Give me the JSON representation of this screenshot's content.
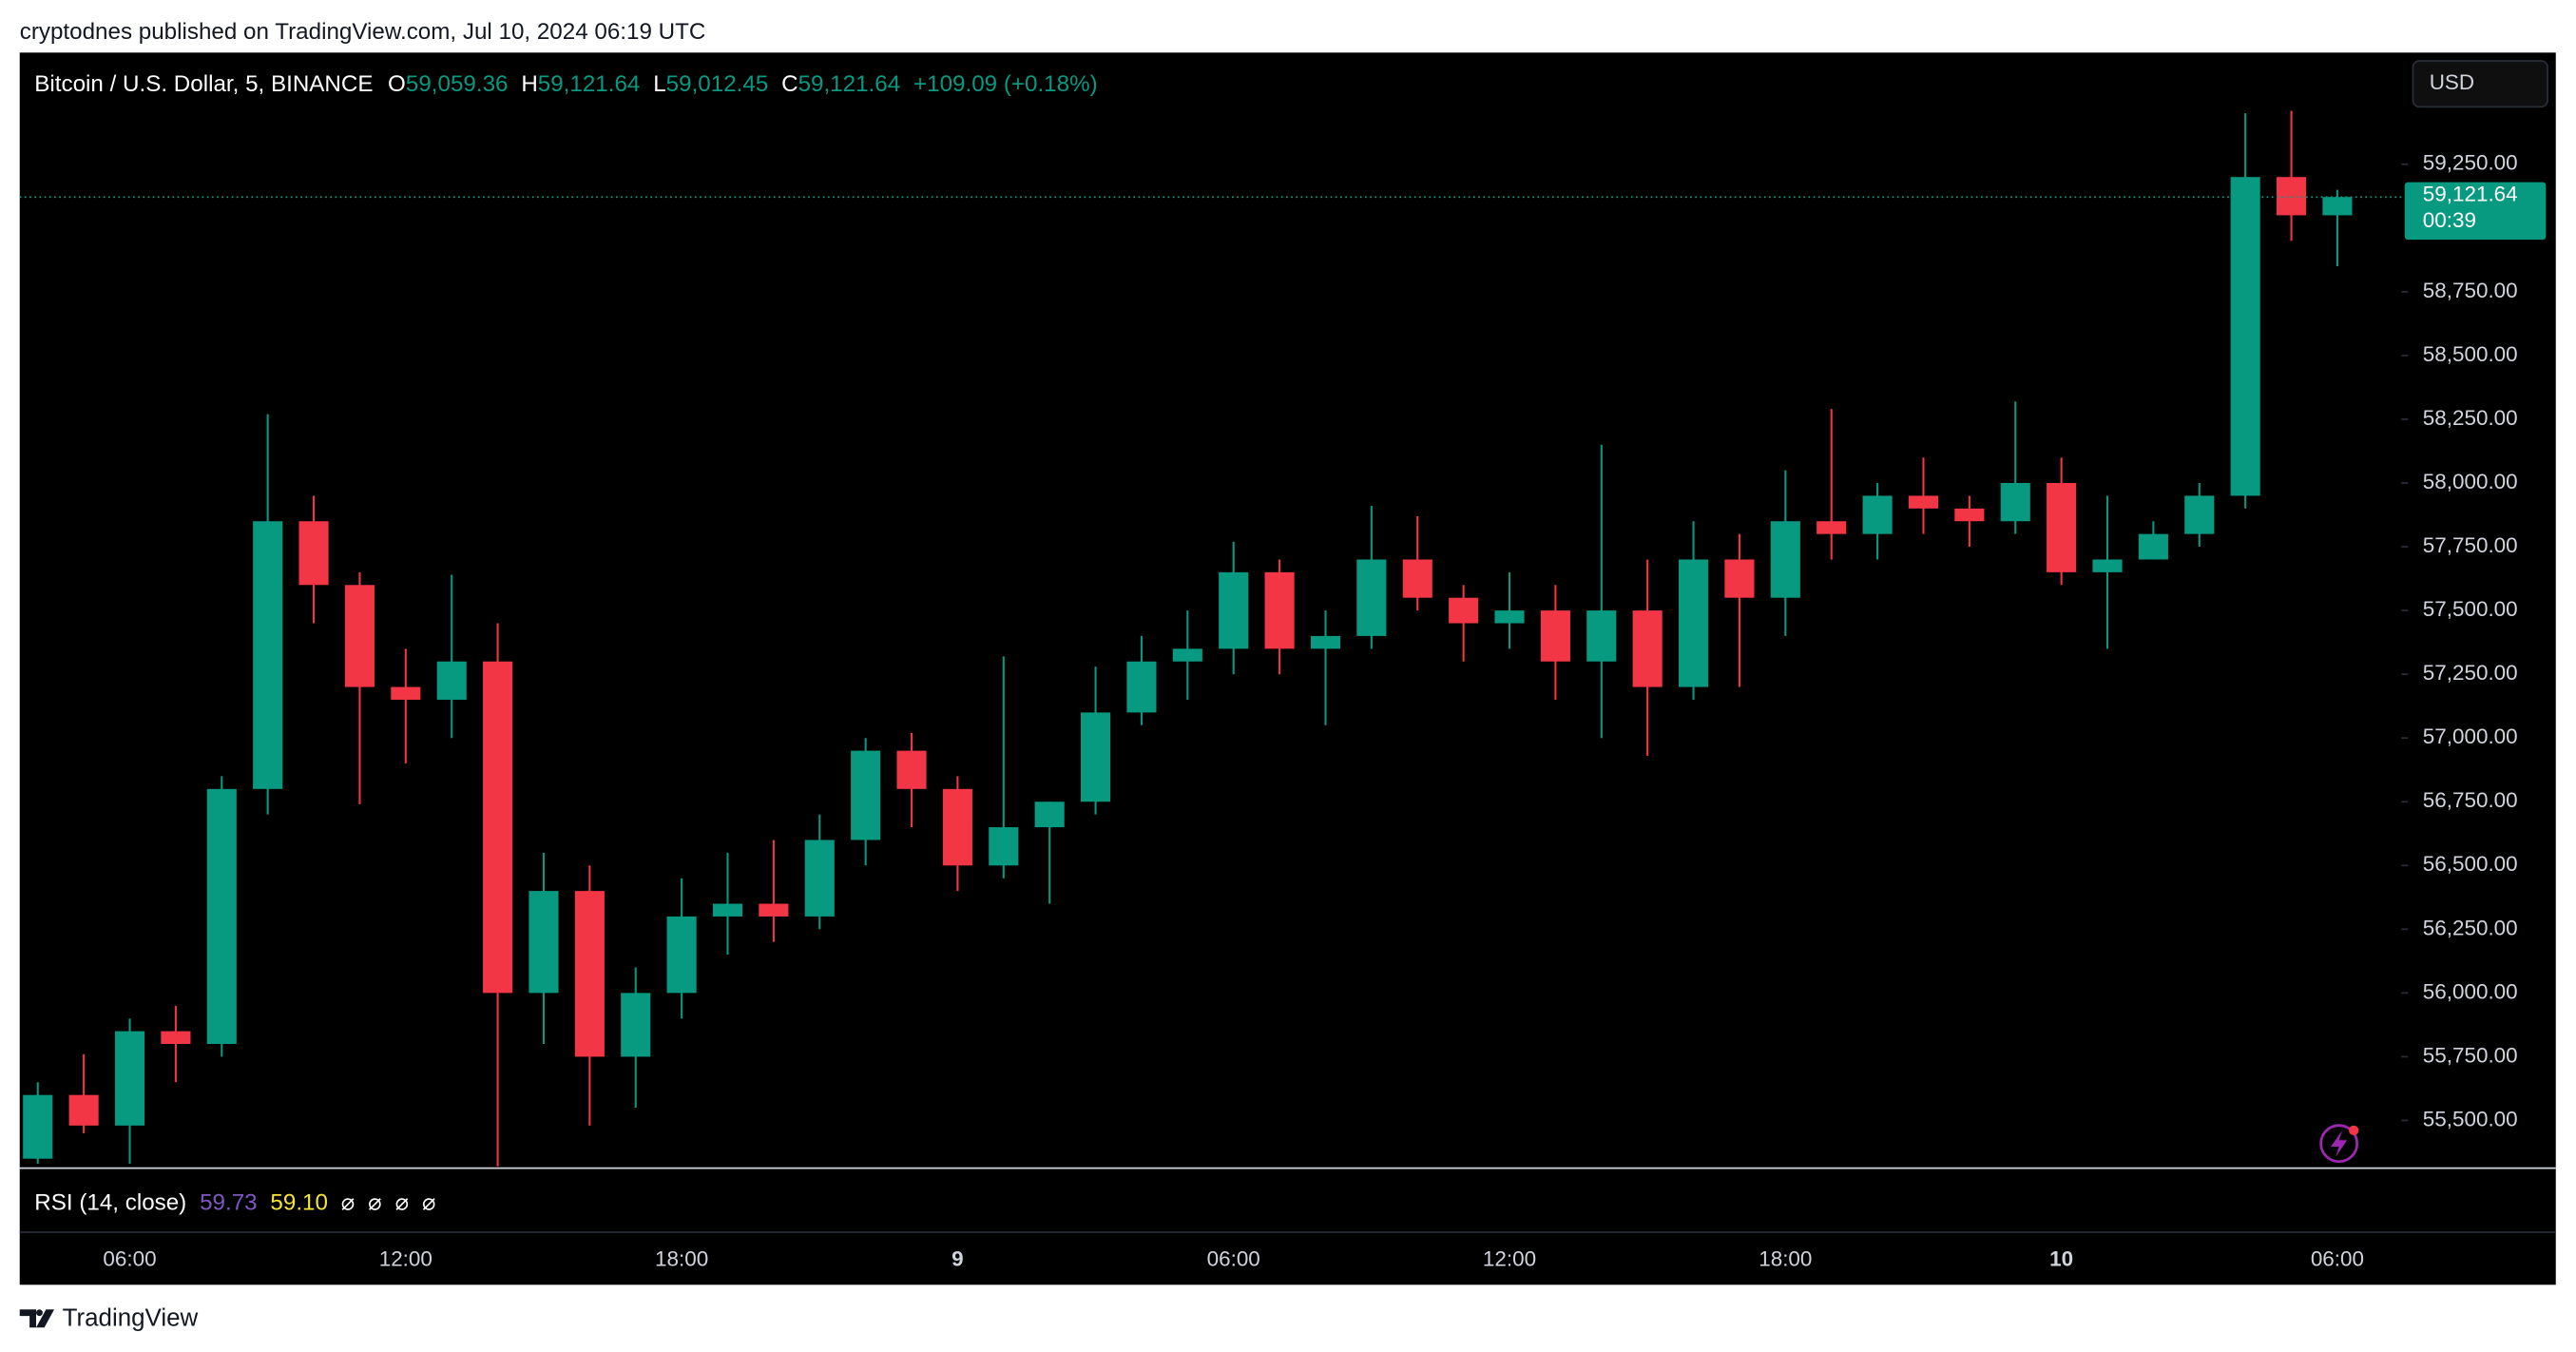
{
  "header": {
    "publisher": "cryptodnes published on TradingView.com, Jul 10, 2024 06:19 UTC"
  },
  "legend": {
    "fields": [
      {
        "key": "O",
        "value": "59,059.36"
      },
      {
        "key": "H",
        "value": "59,121.64"
      },
      {
        "key": "L",
        "value": "59,012.45"
      },
      {
        "key": "C",
        "value": "59,121.64"
      }
    ],
    "change": "+109.09 (+0.18%)"
  },
  "currency": "USD",
  "rsi": {
    "label": "RSI (14, close)",
    "value1": "59.73",
    "value2": "59.10",
    "placeholders": [
      "⌀",
      "⌀",
      "⌀",
      "⌀"
    ]
  },
  "footer": {
    "brand": "TradingView"
  },
  "chart_data": {
    "type": "candlestick",
    "title": "Bitcoin / U.S. Dollar, 5, BINANCE",
    "categories": [
      null,
      null,
      "06:00",
      null,
      null,
      null,
      null,
      null,
      "12:00",
      null,
      null,
      null,
      null,
      null,
      "18:00",
      null,
      null,
      null,
      null,
      null,
      "9",
      null,
      null,
      null,
      null,
      null,
      "06:00",
      null,
      null,
      null,
      null,
      null,
      "12:00",
      null,
      null,
      null,
      null,
      null,
      "18:00",
      null,
      null,
      null,
      null,
      null,
      "10",
      null,
      null,
      null,
      null,
      null,
      "06:00"
    ],
    "open": [
      55350,
      55600,
      55480,
      55850,
      55800,
      56800,
      57850,
      57600,
      57200,
      57150,
      57300,
      56000,
      56400,
      55750,
      56000,
      56300,
      56350,
      56300,
      56600,
      56950,
      56800,
      56500,
      56650,
      56750,
      57100,
      57300,
      57350,
      57650,
      57350,
      57400,
      57700,
      57550,
      57450,
      57500,
      57300,
      57500,
      57200,
      57700,
      57550,
      57850,
      57800,
      57950,
      57900,
      57850,
      58000,
      57650,
      57700,
      57800,
      57950,
      59200,
      59050
    ],
    "high": [
      55650,
      55760,
      55900,
      55950,
      56850,
      58270,
      57950,
      57650,
      57350,
      57640,
      57450,
      56550,
      56500,
      56100,
      56450,
      56550,
      56600,
      56700,
      57000,
      57020,
      56850,
      57320,
      56750,
      57280,
      57400,
      57500,
      57770,
      57700,
      57500,
      57910,
      57870,
      57600,
      57650,
      57600,
      58150,
      57700,
      57850,
      57800,
      58050,
      58290,
      58000,
      58100,
      57950,
      58320,
      58100,
      57950,
      57850,
      58000,
      59450,
      59460,
      59150
    ],
    "low": [
      55330,
      55450,
      55330,
      55650,
      55750,
      56700,
      57450,
      56740,
      56900,
      57000,
      55320,
      55800,
      55480,
      55550,
      55900,
      56150,
      56200,
      56250,
      56500,
      56650,
      56400,
      56450,
      56350,
      56700,
      57050,
      57150,
      57250,
      57250,
      57050,
      57350,
      57500,
      57300,
      57350,
      57150,
      57000,
      56930,
      57150,
      57200,
      57400,
      57700,
      57700,
      57800,
      57750,
      57800,
      57600,
      57350,
      57700,
      57750,
      57900,
      58950,
      58850
    ],
    "close": [
      55600,
      55480,
      55850,
      55800,
      56800,
      57850,
      57600,
      57200,
      57150,
      57300,
      56000,
      56400,
      55750,
      56000,
      56300,
      56350,
      56300,
      56600,
      56950,
      56800,
      56500,
      56650,
      56750,
      57100,
      57300,
      57350,
      57650,
      57350,
      57400,
      57700,
      57550,
      57450,
      57500,
      57300,
      57500,
      57200,
      57700,
      57550,
      57850,
      57800,
      57950,
      57900,
      57850,
      58000,
      57650,
      57700,
      57800,
      57950,
      59200,
      59050,
      59121.64
    ],
    "colors": {
      "up": "#089981",
      "down": "#f23645"
    },
    "ylim": [
      55313,
      59688
    ],
    "yticks": [
      {
        "value": 55500,
        "label": "55,500.00"
      },
      {
        "value": 55750,
        "label": "55,750.00"
      },
      {
        "value": 56000,
        "label": "56,000.00"
      },
      {
        "value": 56250,
        "label": "56,250.00"
      },
      {
        "value": 56500,
        "label": "56,500.00"
      },
      {
        "value": 56750,
        "label": "56,750.00"
      },
      {
        "value": 57000,
        "label": "57,000.00"
      },
      {
        "value": 57250,
        "label": "57,250.00"
      },
      {
        "value": 57500,
        "label": "57,500.00"
      },
      {
        "value": 57750,
        "label": "57,750.00"
      },
      {
        "value": 58000,
        "label": "58,000.00"
      },
      {
        "value": 58250,
        "label": "58,250.00"
      },
      {
        "value": 58500,
        "label": "58,500.00"
      },
      {
        "value": 58750,
        "label": "58,750.00"
      },
      {
        "value": 59250,
        "label": "59,250.00"
      }
    ],
    "last_price": {
      "value": 59121.64,
      "label": "59,121.64"
    },
    "countdown": "00:39"
  }
}
